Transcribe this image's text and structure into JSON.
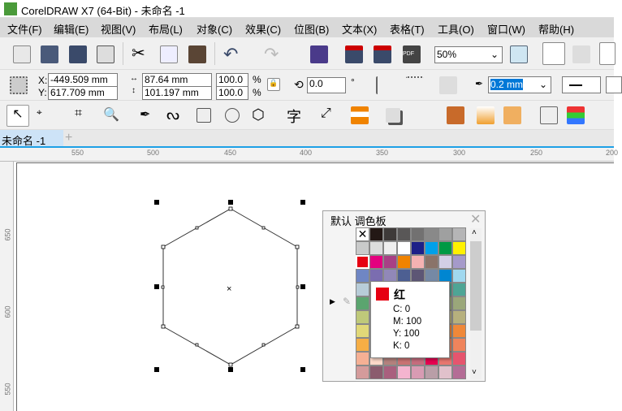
{
  "title": "CorelDRAW X7 (64-Bit) - 未命名 -1",
  "menu": [
    "文件(F)",
    "编辑(E)",
    "视图(V)",
    "布局(L)",
    "对象(C)",
    "效果(C)",
    "位图(B)",
    "文本(X)",
    "表格(T)",
    "工具(O)",
    "窗口(W)",
    "帮助(H)"
  ],
  "toolbar": {
    "zoom": "50%"
  },
  "props": {
    "x_label": "X:",
    "y_label": "Y:",
    "x": "-449.509 mm",
    "y": "617.709 mm",
    "width": "87.64 mm",
    "height": "101.197 mm",
    "scale_x": "100.0",
    "scale_y": "100.0",
    "pct": "%",
    "rotation": "0.0",
    "deg": "°",
    "outline": "0.2 mm"
  },
  "doc_tab": "未命名 -1",
  "ruler": {
    "h": [
      "550",
      "500",
      "450",
      "400",
      "350",
      "300",
      "250",
      "200"
    ],
    "v": [
      "650",
      "600",
      "550"
    ]
  },
  "palette": {
    "title": "默认 调色板",
    "colors": [
      [
        "none",
        "#231815",
        "#3e3a39",
        "#595757",
        "#727171",
        "#898989",
        "#9fa0a0",
        "#b5b5b6"
      ],
      [
        "#c9caca",
        "#dcdddd",
        "#efefef",
        "#ffffff",
        "#1d2088",
        "#00a0e9",
        "#009944",
        "#fff100"
      ],
      [
        "#e60012",
        "#e4007f",
        "#a84085",
        "#f08300",
        "#f5b2b2",
        "#8a7369",
        "#d3cfe6",
        "#a59aca"
      ],
      [
        "#6f86c4",
        "#7b6db0",
        "#9188b8",
        "#4d5f92",
        "#5d5675",
        "#7589a5",
        "#0086d1",
        "#a0d8ef"
      ],
      [
        "#b8ccd8",
        "#9fb8c8",
        "#8aa6b8",
        "#6d8e9a",
        "#5a8a8a",
        "#4e9a8e",
        "#4ea595",
        "#4ea595"
      ],
      [
        "#5ba56f",
        "#6fa870",
        "#80a878",
        "#8ea878",
        "#94a878",
        "#96a878",
        "#9aa77a",
        "#9aa77a"
      ],
      [
        "#bfc97a",
        "#c0c47a",
        "#c0bd7c",
        "#bcb87c",
        "#b8b47d",
        "#b6b07d",
        "#b6b07d",
        "#b6b07d"
      ],
      [
        "#e1d878",
        "#e4c46a",
        "#e8b05a",
        "#eca04a",
        "#ee9440",
        "#ef8c3c",
        "#ef8839",
        "#ef8839"
      ],
      [
        "#f6ae45",
        "#f4a450",
        "#f29a56",
        "#f0905a",
        "#ef8a5c",
        "#ef865c",
        "#ef845c",
        "#ef845c"
      ],
      [
        "#f5b094",
        "#fdd9c9",
        "#b3817c",
        "#c97272",
        "#c56c7d",
        "#e4004f",
        "#e7776f",
        "#e6556e"
      ],
      [
        "#d49b9b",
        "#8b5c6e",
        "#a9607e",
        "#f4b4cf",
        "#d89bb3",
        "#b99ea7",
        "#e1c1cb",
        "#b46d96"
      ]
    ],
    "tooltip": {
      "name": "红",
      "swatch": "#e60012",
      "c": "C: 0",
      "m": "M: 100",
      "y": "Y: 100",
      "k": "K: 0"
    }
  }
}
